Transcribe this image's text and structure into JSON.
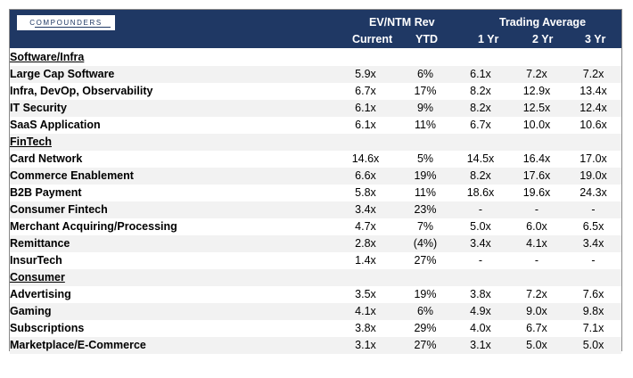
{
  "brand": "COMPOUNDERS",
  "header": {
    "group_ev": "EV/NTM Rev",
    "group_trading": "Trading Average",
    "columns": [
      "Current",
      "YTD",
      "1 Yr",
      "2 Yr",
      "3 Yr"
    ]
  },
  "sections": [
    {
      "title": "Software/Infra",
      "rows": [
        {
          "label": "Large Cap Software",
          "values": [
            "5.9x",
            "6%",
            "6.1x",
            "7.2x",
            "7.2x"
          ]
        },
        {
          "label": "Infra, DevOp, Observability",
          "values": [
            "6.7x",
            "17%",
            "8.2x",
            "12.9x",
            "13.4x"
          ]
        },
        {
          "label": "IT Security",
          "values": [
            "6.1x",
            "9%",
            "8.2x",
            "12.5x",
            "12.4x"
          ]
        },
        {
          "label": "SaaS Application",
          "values": [
            "6.1x",
            "11%",
            "6.7x",
            "10.0x",
            "10.6x"
          ]
        }
      ]
    },
    {
      "title": "FinTech",
      "rows": [
        {
          "label": "Card Network",
          "values": [
            "14.6x",
            "5%",
            "14.5x",
            "16.4x",
            "17.0x"
          ]
        },
        {
          "label": "Commerce Enablement",
          "values": [
            "6.6x",
            "19%",
            "8.2x",
            "17.6x",
            "19.0x"
          ]
        },
        {
          "label": "B2B Payment",
          "values": [
            "5.8x",
            "11%",
            "18.6x",
            "19.6x",
            "24.3x"
          ]
        },
        {
          "label": "Consumer Fintech",
          "values": [
            "3.4x",
            "23%",
            "-",
            "-",
            "-"
          ]
        },
        {
          "label": "Merchant Acquiring/Processing",
          "values": [
            "4.7x",
            "7%",
            "5.0x",
            "6.0x",
            "6.5x"
          ]
        },
        {
          "label": "Remittance",
          "values": [
            "2.8x",
            "(4%)",
            "3.4x",
            "4.1x",
            "3.4x"
          ]
        },
        {
          "label": "InsurTech",
          "values": [
            "1.4x",
            "27%",
            "-",
            "-",
            "-"
          ]
        }
      ]
    },
    {
      "title": "Consumer",
      "rows": [
        {
          "label": "Advertising",
          "values": [
            "3.5x",
            "19%",
            "3.8x",
            "7.2x",
            "7.6x"
          ]
        },
        {
          "label": "Gaming",
          "values": [
            "4.1x",
            "6%",
            "4.9x",
            "9.0x",
            "9.8x"
          ]
        },
        {
          "label": "Subscriptions",
          "values": [
            "3.8x",
            "29%",
            "4.0x",
            "6.7x",
            "7.1x"
          ]
        },
        {
          "label": "Marketplace/E-Commerce",
          "values": [
            "3.1x",
            "27%",
            "3.1x",
            "5.0x",
            "5.0x"
          ]
        }
      ]
    }
  ],
  "colors": {
    "header_bg": "#1f3864",
    "stripe": "#f2f2f2"
  }
}
